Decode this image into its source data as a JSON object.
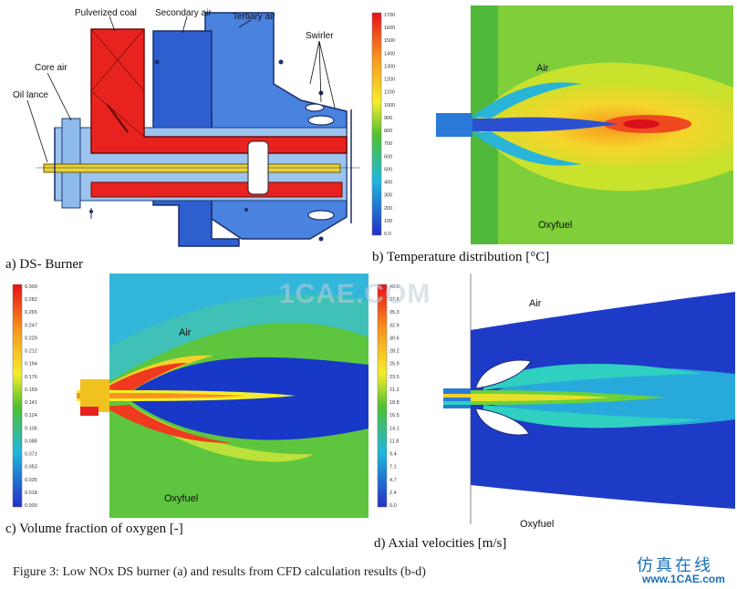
{
  "panel_a": {
    "caption": "a) DS- Burner",
    "labels": {
      "pulverized_coal": "Pulverized coal",
      "secondary_air": "Secondary air",
      "tertiary_air": "Tertiary air",
      "swirler": "Swirler",
      "core_air": "Core air",
      "oil_lance": "Oil lance"
    }
  },
  "panel_b": {
    "caption": "b) Temperature distribution [°C]",
    "air_label": "Air",
    "oxyfuel_label": "Oxyfuel",
    "colorbar_ticks": [
      "1700",
      "1600",
      "1500",
      "1400",
      "1300",
      "1200",
      "1100",
      "1000",
      "900",
      "800",
      "700",
      "600",
      "500",
      "400",
      "300",
      "200",
      "100",
      "0.0"
    ]
  },
  "panel_c": {
    "caption": "c) Volume fraction of oxygen [-]",
    "air_label": "Air",
    "oxyfuel_label": "Oxyfuel",
    "colorbar_ticks": [
      "0.300",
      "0.282",
      "0.265",
      "0.247",
      "0.229",
      "0.212",
      "0.194",
      "0.176",
      "0.159",
      "0.141",
      "0.124",
      "0.106",
      "0.088",
      "0.071",
      "0.053",
      "0.035",
      "0.018",
      "0.000"
    ]
  },
  "panel_d": {
    "caption": "d) Axial velocities [m/s]",
    "air_label": "Air",
    "oxyfuel_label": "Oxyfuel",
    "colorbar_ticks": [
      "40.0",
      "37.6",
      "35.3",
      "32.9",
      "30.6",
      "28.2",
      "25.9",
      "23.5",
      "21.2",
      "18.8",
      "16.5",
      "14.1",
      "11.8",
      "9.4",
      "7.1",
      "4.7",
      "2.4",
      "0.0"
    ]
  },
  "watermark": "1CAE.COM",
  "figure_caption": "Figure 3: Low NOx DS burner (a) and results from CFD calculation results (b-d)",
  "brand": {
    "chinese": "仿真在线",
    "url": "www.1CAE.com"
  },
  "colors": {
    "burner_red": "#e8231f",
    "burner_blue": "#2f6ad6",
    "light_blue": "#9cc4ee",
    "lance_yellow": "#e8d23a"
  }
}
